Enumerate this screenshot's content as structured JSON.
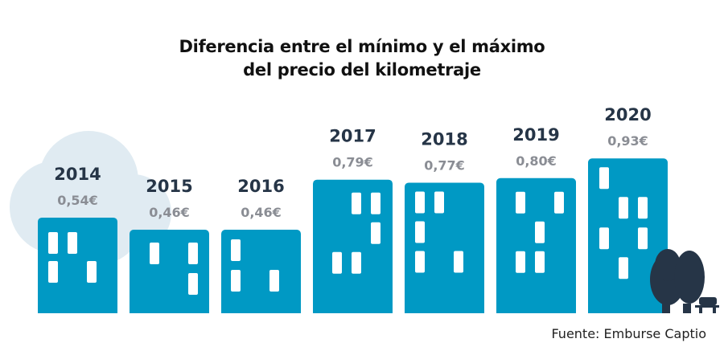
{
  "chart_data": {
    "type": "bar",
    "title_lines": [
      "Diferencia entre el mínimo y el máximo",
      "del precio del kilometraje"
    ],
    "categories": [
      "2014",
      "2015",
      "2016",
      "2017",
      "2018",
      "2019",
      "2020"
    ],
    "values": [
      0.54,
      0.46,
      0.46,
      0.79,
      0.77,
      0.8,
      0.93
    ],
    "value_labels": [
      "0,54€",
      "0,46€",
      "0,46€",
      "0,79€",
      "0,77€",
      "0,80€",
      "0,93€"
    ],
    "source": "Fuente: Emburse Captio",
    "colors": {
      "bar": "#0099c4",
      "window": "#ffffff",
      "cloud": "#e0ebf2",
      "year": "#263547",
      "value": "#8a8d94",
      "tree": "#263547"
    }
  }
}
